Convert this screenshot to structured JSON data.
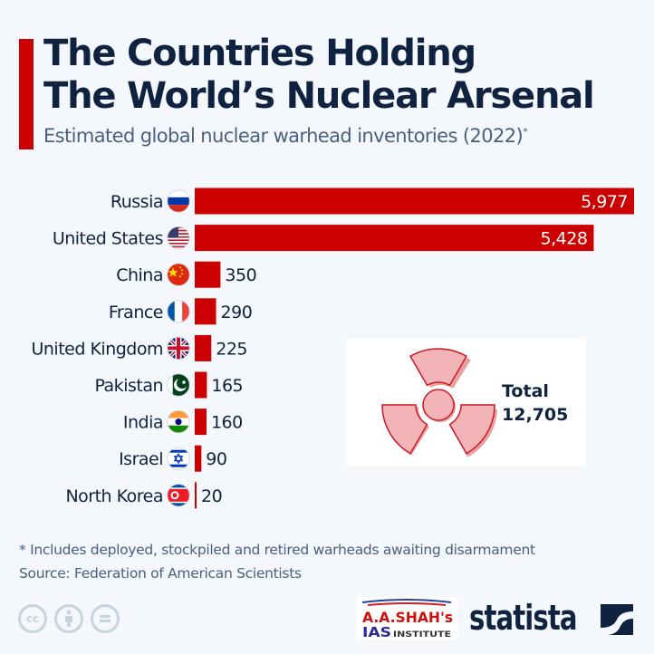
{
  "header": {
    "title_line1": "The Countries Holding",
    "title_line2": "The World’s Nuclear Arsenal",
    "subtitle": "Estimated global nuclear warhead inventories (2022)",
    "subtitle_mark": "*"
  },
  "chart_data": {
    "type": "bar",
    "orientation": "horizontal",
    "title": "The Countries Holding The World’s Nuclear Arsenal",
    "subtitle": "Estimated global nuclear warhead inventories (2022)*",
    "categories": [
      "Russia",
      "United States",
      "China",
      "France",
      "United Kingdom",
      "Pakistan",
      "India",
      "Israel",
      "North Korea"
    ],
    "values": [
      5977,
      5428,
      350,
      290,
      225,
      165,
      160,
      90,
      20
    ],
    "value_labels": [
      "5,977",
      "5,428",
      "350",
      "290",
      "225",
      "165",
      "160",
      "90",
      "20"
    ],
    "flags": [
      "flag-russia",
      "flag-united-states",
      "flag-china",
      "flag-france",
      "flag-united-kingdom",
      "flag-pakistan",
      "flag-india",
      "flag-israel",
      "flag-north-korea"
    ],
    "xlim": [
      0,
      5977
    ],
    "grid": false,
    "bar_color": "#cc0000"
  },
  "total": {
    "label": "Total",
    "value": "12,705",
    "icon": "radiation-icon"
  },
  "footer": {
    "note": "* Includes deployed, stockpiled and retired warheads awaiting disarmament",
    "source": "Source: Federation of American Scientists",
    "license_icons": [
      "cc-icon",
      "by-icon",
      "nd-icon"
    ],
    "partner_logo_line1": "A.A.SHAH's",
    "partner_logo_line2a": "IAS",
    "partner_logo_line2b": "INSTITUTE",
    "brand": "statista"
  },
  "colors": {
    "accent": "#cc0000",
    "title": "#0f2340",
    "subtitle": "#4a6080",
    "background": "#f4f7fb"
  }
}
